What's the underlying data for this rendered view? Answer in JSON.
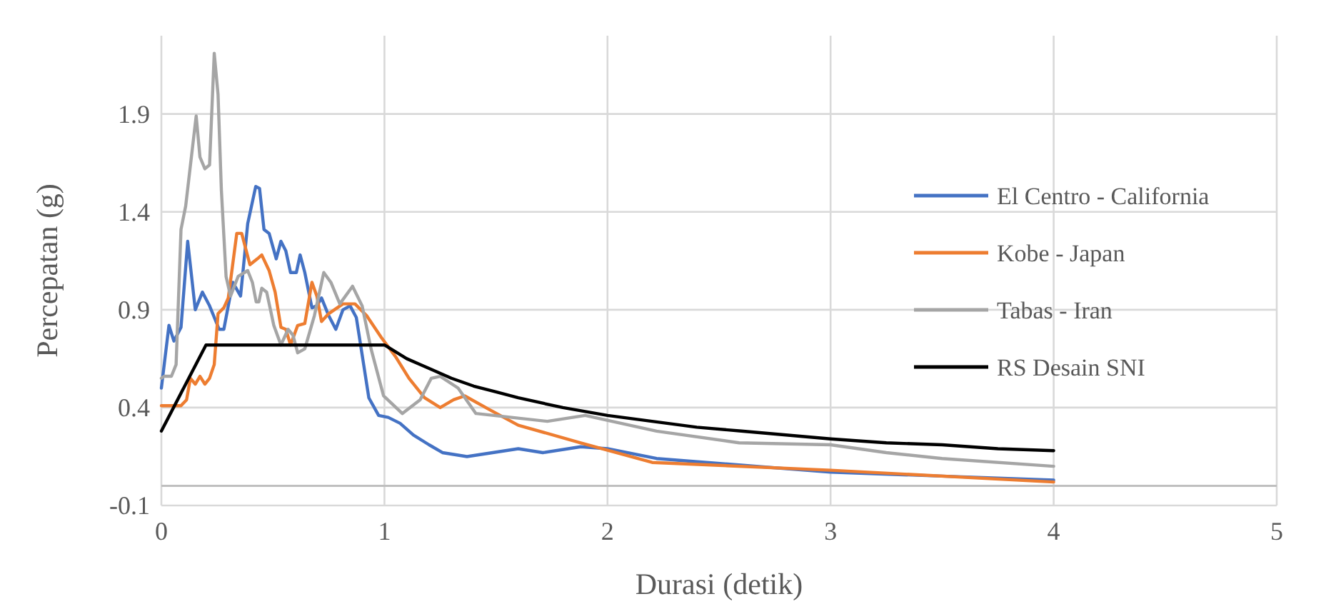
{
  "chart_data": {
    "type": "line",
    "xlabel": "Durasi (detik)",
    "ylabel": "Percepatan (g)",
    "xlim": [
      0,
      5
    ],
    "xticks": [
      0,
      1,
      2,
      3,
      4,
      5
    ],
    "ylim": [
      -0.1,
      2.3
    ],
    "yticks": [
      -0.1,
      0.4,
      0.9,
      1.4,
      1.9
    ],
    "grid": true,
    "legend": "right",
    "marker": "none",
    "line_style": "solid",
    "series": [
      {
        "name": "El Centro - California",
        "color": "#4472c4",
        "x": [
          0,
          0.034,
          0.056,
          0.088,
          0.118,
          0.152,
          0.184,
          0.216,
          0.259,
          0.28,
          0.32,
          0.355,
          0.387,
          0.423,
          0.44,
          0.46,
          0.483,
          0.515,
          0.536,
          0.558,
          0.579,
          0.605,
          0.622,
          0.643,
          0.675,
          0.697,
          0.718,
          0.75,
          0.782,
          0.814,
          0.846,
          0.874,
          0.9,
          0.93,
          0.974,
          1.017,
          1.07,
          1.13,
          1.2,
          1.26,
          1.37,
          1.6,
          1.71,
          1.88,
          2.0,
          2.22,
          3.0,
          4.0
        ],
        "values": [
          0.5,
          0.82,
          0.74,
          0.81,
          1.25,
          0.9,
          0.99,
          0.92,
          0.8,
          0.8,
          1.04,
          0.97,
          1.34,
          1.53,
          1.52,
          1.31,
          1.29,
          1.16,
          1.25,
          1.2,
          1.09,
          1.09,
          1.18,
          1.09,
          0.91,
          0.92,
          0.96,
          0.87,
          0.8,
          0.9,
          0.92,
          0.86,
          0.67,
          0.45,
          0.36,
          0.35,
          0.32,
          0.26,
          0.21,
          0.17,
          0.15,
          0.19,
          0.17,
          0.2,
          0.19,
          0.14,
          0.07,
          0.03
        ]
      },
      {
        "name": "Kobe - Japan",
        "color": "#ed7d31",
        "x": [
          0,
          0.088,
          0.113,
          0.13,
          0.152,
          0.173,
          0.195,
          0.216,
          0.237,
          0.254,
          0.28,
          0.3,
          0.338,
          0.36,
          0.397,
          0.43,
          0.45,
          0.483,
          0.51,
          0.536,
          0.558,
          0.579,
          0.611,
          0.643,
          0.675,
          0.697,
          0.718,
          0.75,
          0.814,
          0.868,
          0.92,
          0.985,
          1.05,
          1.11,
          1.18,
          1.25,
          1.31,
          1.36,
          1.47,
          1.6,
          1.88,
          2.2,
          3.0,
          4.0
        ],
        "values": [
          0.41,
          0.41,
          0.44,
          0.55,
          0.52,
          0.56,
          0.52,
          0.55,
          0.62,
          0.88,
          0.91,
          0.96,
          1.29,
          1.29,
          1.13,
          1.16,
          1.18,
          1.1,
          0.99,
          0.81,
          0.8,
          0.72,
          0.82,
          0.83,
          1.04,
          0.97,
          0.84,
          0.88,
          0.93,
          0.93,
          0.87,
          0.76,
          0.66,
          0.55,
          0.45,
          0.4,
          0.44,
          0.46,
          0.39,
          0.31,
          0.22,
          0.12,
          0.08,
          0.02
        ]
      },
      {
        "name": "Tabas - Iran",
        "color": "#a5a5a5",
        "x": [
          0,
          0.013,
          0.045,
          0.066,
          0.088,
          0.109,
          0.156,
          0.173,
          0.195,
          0.216,
          0.237,
          0.254,
          0.269,
          0.29,
          0.31,
          0.344,
          0.387,
          0.408,
          0.425,
          0.437,
          0.45,
          0.472,
          0.504,
          0.536,
          0.568,
          0.59,
          0.611,
          0.643,
          0.686,
          0.728,
          0.76,
          0.8,
          0.857,
          0.9,
          0.94,
          0.996,
          1.08,
          1.16,
          1.21,
          1.25,
          1.33,
          1.41,
          1.73,
          1.9,
          2.22,
          2.59,
          3.0,
          3.25,
          3.5,
          4.0
        ],
        "values": [
          0.55,
          0.56,
          0.56,
          0.62,
          1.31,
          1.43,
          1.89,
          1.68,
          1.62,
          1.64,
          2.21,
          2.0,
          1.51,
          1.07,
          0.97,
          1.07,
          1.1,
          1.04,
          0.94,
          0.94,
          1.01,
          0.99,
          0.82,
          0.72,
          0.8,
          0.77,
          0.68,
          0.7,
          0.87,
          1.09,
          1.04,
          0.93,
          1.02,
          0.92,
          0.7,
          0.46,
          0.37,
          0.44,
          0.55,
          0.56,
          0.5,
          0.37,
          0.33,
          0.36,
          0.28,
          0.22,
          0.21,
          0.17,
          0.14,
          0.1
        ]
      },
      {
        "name": "RS Desain SNI",
        "color": "#000000",
        "x": [
          0,
          0.2,
          1.0,
          1.1,
          1.2,
          1.3,
          1.4,
          1.5,
          1.6,
          1.8,
          2.0,
          2.2,
          2.4,
          2.6,
          2.8,
          3.0,
          3.25,
          3.5,
          3.75,
          4.0
        ],
        "values": [
          0.28,
          0.72,
          0.72,
          0.65,
          0.6,
          0.55,
          0.51,
          0.48,
          0.45,
          0.4,
          0.36,
          0.33,
          0.3,
          0.28,
          0.26,
          0.24,
          0.22,
          0.21,
          0.19,
          0.18
        ]
      }
    ]
  }
}
